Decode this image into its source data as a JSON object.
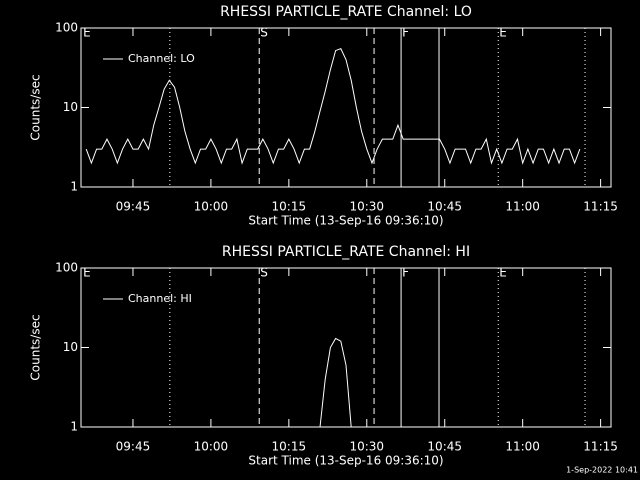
{
  "chart_data": [
    {
      "type": "line",
      "title": "RHESSI PARTICLE_RATE Channel: LO",
      "xlabel": "Start Time (13-Sep-16 09:36:10)",
      "ylabel": "Counts/sec",
      "x": [
        576,
        577,
        578,
        579,
        580,
        581,
        582,
        583,
        584,
        585,
        586,
        587,
        588,
        589,
        590,
        591,
        592,
        593,
        594,
        595,
        596,
        597,
        598,
        599,
        600,
        601,
        602,
        603,
        604,
        605,
        606,
        607,
        608,
        609,
        610,
        611,
        612,
        613,
        614,
        615,
        616,
        617,
        618,
        619,
        620,
        621,
        622,
        623,
        624,
        625,
        626,
        627,
        628,
        629,
        630,
        631,
        632,
        633,
        634,
        635,
        636,
        637,
        638,
        639,
        640,
        641,
        642,
        643,
        644,
        645,
        646,
        647,
        648,
        649,
        650,
        651,
        652,
        653,
        654,
        655,
        656,
        657,
        658,
        659,
        660,
        661,
        662,
        663,
        664,
        665,
        666,
        667,
        668,
        669,
        670,
        671
      ],
      "series": [
        {
          "name": "Channel: LO",
          "color": "#ffffff",
          "values": [
            3,
            2,
            3,
            3,
            4,
            3,
            2,
            3,
            4,
            3,
            3,
            4,
            3,
            6,
            10,
            17,
            22,
            18,
            10,
            5,
            3,
            2,
            3,
            3,
            4,
            3,
            2,
            3,
            3,
            4,
            2,
            3,
            3,
            3,
            4,
            3,
            2,
            3,
            3,
            4,
            3,
            2,
            3,
            3,
            5,
            9,
            16,
            30,
            52,
            55,
            40,
            22,
            10,
            5,
            3,
            2,
            3,
            4,
            4,
            4,
            6,
            4,
            4,
            4,
            4,
            4,
            4,
            4,
            4,
            3,
            2,
            3,
            3,
            3,
            2,
            3,
            3,
            4,
            2,
            3,
            2,
            3,
            3,
            4,
            2,
            3,
            2,
            3,
            3,
            2,
            3,
            2,
            3,
            3,
            2,
            3
          ]
        }
      ],
      "xlim": [
        575,
        677
      ],
      "xticks": [
        {
          "value": 585,
          "label": "09:45"
        },
        {
          "value": 600,
          "label": "10:00"
        },
        {
          "value": 615,
          "label": "10:15"
        },
        {
          "value": 630,
          "label": "10:30"
        },
        {
          "value": 645,
          "label": "10:45"
        },
        {
          "value": 660,
          "label": "11:00"
        },
        {
          "value": 675,
          "label": "11:15"
        }
      ],
      "ylim": [
        1,
        100
      ],
      "yticks": [
        1,
        10,
        100
      ],
      "log_y": true,
      "legend": "upper left",
      "vlines": [
        {
          "x": 592.1,
          "style": "dotted"
        },
        {
          "x": 609.3,
          "style": "dashed"
        },
        {
          "x": 631.4,
          "style": "dashed"
        },
        {
          "x": 636.6,
          "style": "solid"
        },
        {
          "x": 643.9,
          "style": "solid"
        },
        {
          "x": 655.3,
          "style": "dotted"
        },
        {
          "x": 672.0,
          "style": "dotted"
        }
      ],
      "annotations": [
        {
          "text": "E",
          "x": 575.4
        },
        {
          "text": "S",
          "x": 609.5
        },
        {
          "text": "F",
          "x": 636.8
        },
        {
          "text": "E",
          "x": 655.5
        }
      ]
    },
    {
      "type": "line",
      "title": "RHESSI PARTICLE_RATE Channel: HI",
      "xlabel": "Start Time (13-Sep-16 09:36:10)",
      "ylabel": "Counts/sec",
      "x": [
        621,
        622,
        623,
        624,
        625,
        626,
        627
      ],
      "series": [
        {
          "name": "Channel: HI",
          "color": "#ffffff",
          "values": [
            1,
            4,
            10,
            13,
            12,
            6,
            1
          ]
        }
      ],
      "xlim": [
        575,
        677
      ],
      "xticks": [
        {
          "value": 585,
          "label": "09:45"
        },
        {
          "value": 600,
          "label": "10:00"
        },
        {
          "value": 615,
          "label": "10:15"
        },
        {
          "value": 630,
          "label": "10:30"
        },
        {
          "value": 645,
          "label": "10:45"
        },
        {
          "value": 660,
          "label": "11:00"
        },
        {
          "value": 675,
          "label": "11:15"
        }
      ],
      "ylim": [
        1,
        100
      ],
      "yticks": [
        1,
        10,
        100
      ],
      "log_y": true,
      "legend": "upper left",
      "vlines": [
        {
          "x": 592.1,
          "style": "dotted"
        },
        {
          "x": 609.3,
          "style": "dashed"
        },
        {
          "x": 631.4,
          "style": "dashed"
        },
        {
          "x": 636.6,
          "style": "solid"
        },
        {
          "x": 643.9,
          "style": "solid"
        },
        {
          "x": 655.3,
          "style": "dotted"
        },
        {
          "x": 672.0,
          "style": "dotted"
        }
      ],
      "annotations": [
        {
          "text": "E",
          "x": 575.4
        },
        {
          "text": "S",
          "x": 609.5
        },
        {
          "text": "F",
          "x": 636.8
        },
        {
          "text": "E",
          "x": 655.5
        }
      ]
    }
  ],
  "footer": "1-Sep-2022 10:41"
}
